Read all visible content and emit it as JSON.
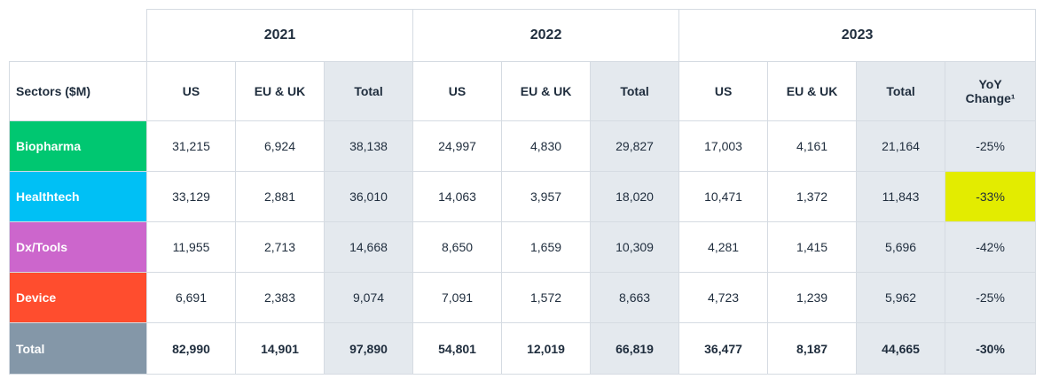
{
  "years": [
    "2021",
    "2022",
    "2023"
  ],
  "headers": {
    "sectors": "Sectors ($M)",
    "us": "US",
    "eu_uk": "EU & UK",
    "total": "Total",
    "yoy_line1": "YoY",
    "yoy_line2": "Change¹"
  },
  "colors": {
    "biopharma": "#00c771",
    "healthtech": "#00c0f5",
    "dx_tools": "#cc66cc",
    "device": "#ff4d2e",
    "total_row": "#8497a8",
    "highlight": "#e3ec00",
    "shade": "#e4e9ee"
  },
  "rows": [
    {
      "sector": "Biopharma",
      "cells": [
        "31,215",
        "6,924",
        "38,138",
        "24,997",
        "4,830",
        "29,827",
        "17,003",
        "4,161",
        "21,164"
      ],
      "yoy": "-25%",
      "highlight_yoy": false
    },
    {
      "sector": "Healthtech",
      "cells": [
        "33,129",
        "2,881",
        "36,010",
        "14,063",
        "3,957",
        "18,020",
        "10,471",
        "1,372",
        "11,843"
      ],
      "yoy": "-33%",
      "highlight_yoy": true
    },
    {
      "sector": "Dx/Tools",
      "cells": [
        "11,955",
        "2,713",
        "14,668",
        "8,650",
        "1,659",
        "10,309",
        "4,281",
        "1,415",
        "5,696"
      ],
      "yoy": "-42%",
      "highlight_yoy": false
    },
    {
      "sector": "Device",
      "cells": [
        "6,691",
        "2,383",
        "9,074",
        "7,091",
        "1,572",
        "8,663",
        "4,723",
        "1,239",
        "5,962"
      ],
      "yoy": "-25%",
      "highlight_yoy": false
    },
    {
      "sector": "Total",
      "cells": [
        "82,990",
        "14,901",
        "97,890",
        "54,801",
        "12,019",
        "66,819",
        "36,477",
        "8,187",
        "44,665"
      ],
      "yoy": "-30%",
      "highlight_yoy": false
    }
  ]
}
